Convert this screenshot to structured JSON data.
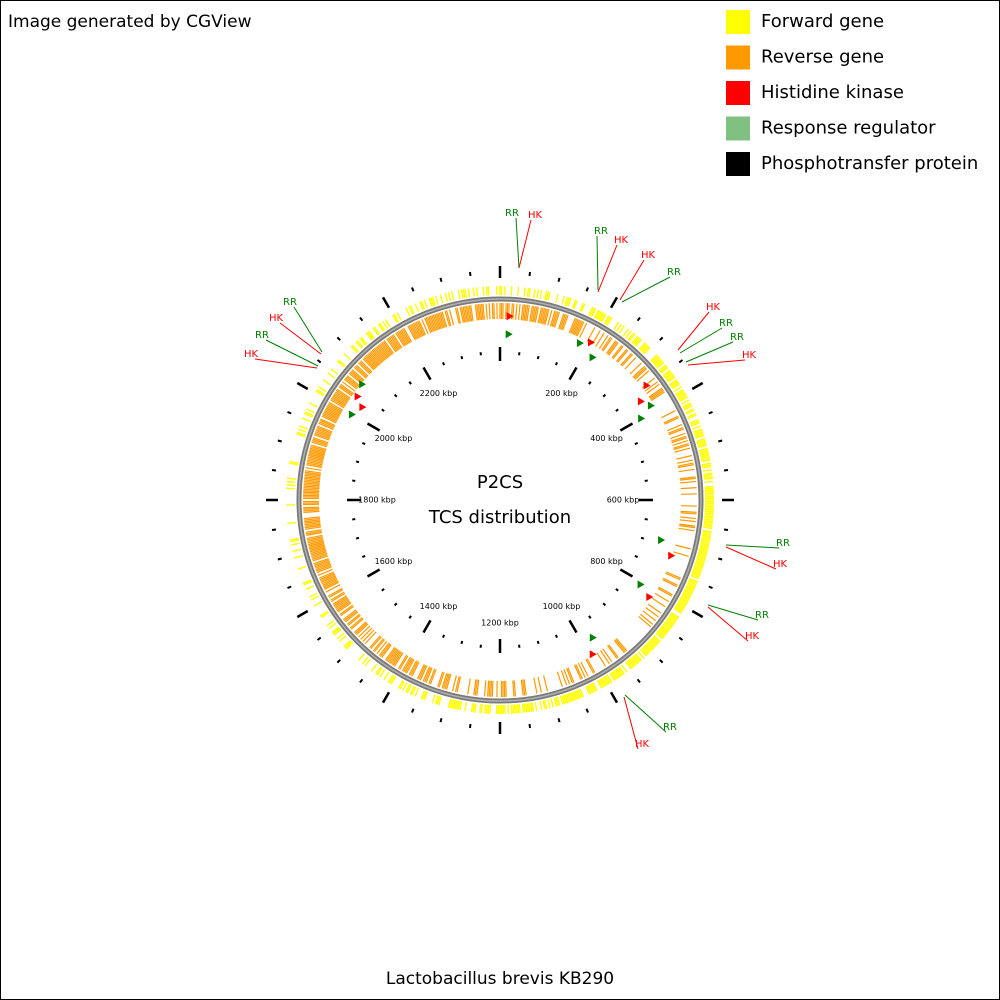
{
  "header": {
    "credit": "Image generated by CGView"
  },
  "legend": [
    {
      "label": "Forward gene",
      "color": "#ffff00"
    },
    {
      "label": "Reverse gene",
      "color": "#ff9900"
    },
    {
      "label": "Histidine kinase",
      "color": "#ff0000"
    },
    {
      "label": "Response regulator",
      "color": "#80c080"
    },
    {
      "label": "Phosphotransfer protein",
      "color": "#000000"
    }
  ],
  "center": {
    "line1": "P2CS",
    "line2": "TCS distribution"
  },
  "scale_labels": [
    "200 kbp",
    "400 kbp",
    "600 kbp",
    "800 kbp",
    "1000 kbp",
    "1200 kbp",
    "1400 kbp",
    "1600 kbp",
    "1800 kbp",
    "2000 kbp",
    "2200 kbp"
  ],
  "annotations": [
    "RR",
    "HK",
    "RR",
    "HK",
    "HK",
    "RR",
    "HK",
    "RR",
    "RR",
    "HK",
    "RR",
    "HK",
    "RR",
    "HK",
    "RR",
    "HK",
    "RR",
    "HK",
    "RR",
    "HK"
  ],
  "footer": {
    "organism": "Lactobacillus brevis KB290"
  }
}
